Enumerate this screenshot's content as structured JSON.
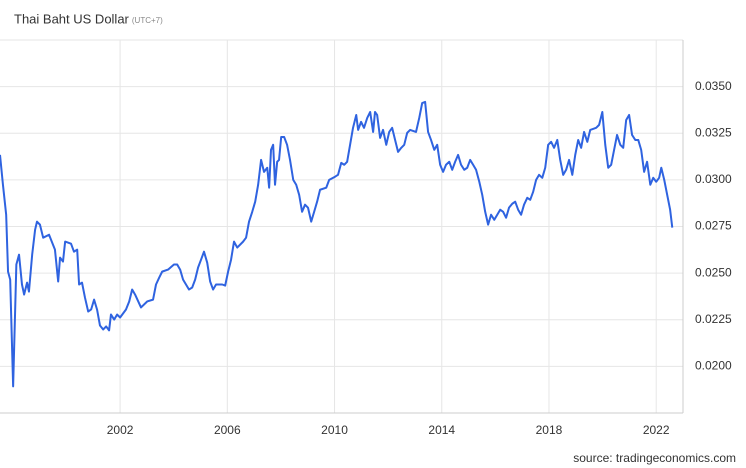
{
  "chart_data": {
    "type": "line",
    "title": "Thai Baht US Dollar",
    "subtitle": "(UTC+7)",
    "source": "source: tradingeconomics.com",
    "color": "#2f63e0",
    "grid": true,
    "xlim": [
      1997.52,
      2023.0
    ],
    "xticks": [
      2002,
      2006,
      2010,
      2014,
      2018,
      2022
    ],
    "ylim": [
      0.0175,
      0.0375
    ],
    "yticks": [
      {
        "value": 0.02,
        "label": "0.0200"
      },
      {
        "value": 0.0225,
        "label": "0.0225"
      },
      {
        "value": 0.025,
        "label": "0.0250"
      },
      {
        "value": 0.0275,
        "label": "0.0275"
      },
      {
        "value": 0.03,
        "label": "0.0300"
      },
      {
        "value": 0.0325,
        "label": "0.0325"
      },
      {
        "value": 0.035,
        "label": "0.0350"
      }
    ],
    "x": [
      1997.52,
      1997.63,
      1997.75,
      1997.82,
      1997.9,
      1998.01,
      1998.13,
      1998.23,
      1998.34,
      1998.42,
      1998.53,
      1998.6,
      1998.72,
      1998.83,
      1998.9,
      1999.01,
      1999.13,
      1999.35,
      1999.57,
      1999.69,
      1999.76,
      1999.87,
      1999.95,
      2000.17,
      2000.28,
      2000.4,
      2000.47,
      2000.58,
      2000.69,
      2000.81,
      2000.92,
      2001.03,
      2001.14,
      2001.25,
      2001.37,
      2001.48,
      2001.59,
      2001.66,
      2001.78,
      2001.89,
      2002.0,
      2002.22,
      2002.34,
      2002.45,
      2002.56,
      2002.78,
      2003.01,
      2003.23,
      2003.34,
      2003.46,
      2003.57,
      2003.79,
      2004.01,
      2004.13,
      2004.24,
      2004.35,
      2004.57,
      2004.69,
      2004.8,
      2004.91,
      2005.02,
      2005.13,
      2005.25,
      2005.36,
      2005.47,
      2005.58,
      2005.81,
      2005.92,
      2006.03,
      2006.14,
      2006.25,
      2006.37,
      2006.59,
      2006.7,
      2006.81,
      2006.93,
      2007.04,
      2007.15,
      2007.26,
      2007.37,
      2007.49,
      2007.56,
      2007.63,
      2007.71,
      2007.78,
      2007.86,
      2007.93,
      2008.01,
      2008.12,
      2008.23,
      2008.34,
      2008.46,
      2008.57,
      2008.68,
      2008.79,
      2008.9,
      2009.01,
      2009.13,
      2009.24,
      2009.35,
      2009.46,
      2009.69,
      2009.8,
      2010.02,
      2010.13,
      2010.25,
      2010.36,
      2010.47,
      2010.58,
      2010.69,
      2010.81,
      2010.88,
      2010.99,
      2011.1,
      2011.22,
      2011.33,
      2011.44,
      2011.51,
      2011.59,
      2011.7,
      2011.81,
      2011.93,
      2012.04,
      2012.15,
      2012.26,
      2012.37,
      2012.49,
      2012.6,
      2012.71,
      2012.82,
      2013.04,
      2013.16,
      2013.27,
      2013.38,
      2013.49,
      2013.6,
      2013.72,
      2013.83,
      2013.94,
      2014.05,
      2014.16,
      2014.28,
      2014.39,
      2014.5,
      2014.61,
      2014.72,
      2014.84,
      2014.95,
      2015.06,
      2015.17,
      2015.28,
      2015.4,
      2015.51,
      2015.62,
      2015.73,
      2015.84,
      2015.96,
      2016.07,
      2016.18,
      2016.29,
      2016.4,
      2016.51,
      2016.63,
      2016.74,
      2016.85,
      2016.96,
      2017.07,
      2017.19,
      2017.3,
      2017.41,
      2017.52,
      2017.63,
      2017.75,
      2017.86,
      2017.97,
      2018.08,
      2018.19,
      2018.31,
      2018.42,
      2018.53,
      2018.64,
      2018.75,
      2018.87,
      2018.98,
      2019.09,
      2019.2,
      2019.31,
      2019.43,
      2019.54,
      2019.76,
      2019.87,
      2019.99,
      2020.1,
      2020.21,
      2020.32,
      2020.43,
      2020.54,
      2020.66,
      2020.77,
      2020.88,
      2020.99,
      2021.1,
      2021.22,
      2021.33,
      2021.44,
      2021.55,
      2021.66,
      2021.78,
      2021.89,
      2022.0,
      2022.11,
      2022.19,
      2022.3,
      2022.41,
      2022.52,
      2022.6
    ],
    "values": [
      0.03134,
      0.02974,
      0.02813,
      0.02508,
      0.02465,
      0.01893,
      0.02546,
      0.02599,
      0.02439,
      0.02385,
      0.02449,
      0.02401,
      0.02599,
      0.02733,
      0.02776,
      0.0276,
      0.0269,
      0.02706,
      0.02626,
      0.02455,
      0.02583,
      0.02562,
      0.02669,
      0.02658,
      0.02615,
      0.02626,
      0.02439,
      0.02449,
      0.02369,
      0.02294,
      0.02305,
      0.02358,
      0.02305,
      0.02219,
      0.02198,
      0.02214,
      0.02193,
      0.02278,
      0.02251,
      0.02278,
      0.02262,
      0.02305,
      0.02348,
      0.02412,
      0.02385,
      0.02316,
      0.02348,
      0.02358,
      0.02439,
      0.02476,
      0.02508,
      0.02519,
      0.02546,
      0.02546,
      0.02519,
      0.02465,
      0.02412,
      0.02423,
      0.02465,
      0.0253,
      0.02572,
      0.02615,
      0.02556,
      0.02455,
      0.02412,
      0.02439,
      0.02439,
      0.02433,
      0.02508,
      0.02572,
      0.02669,
      0.02637,
      0.02669,
      0.0269,
      0.02776,
      0.02829,
      0.02883,
      0.02974,
      0.03107,
      0.03043,
      0.03065,
      0.02958,
      0.03161,
      0.03188,
      0.02974,
      0.03097,
      0.03107,
      0.0323,
      0.0323,
      0.03188,
      0.03107,
      0.03,
      0.02974,
      0.0292,
      0.02829,
      0.02867,
      0.02851,
      0.02776,
      0.02829,
      0.02883,
      0.02947,
      0.02958,
      0.03,
      0.03017,
      0.03027,
      0.03091,
      0.03081,
      0.03097,
      0.03188,
      0.03279,
      0.03348,
      0.03268,
      0.03311,
      0.03279,
      0.03332,
      0.03364,
      0.03257,
      0.03364,
      0.03348,
      0.03225,
      0.03268,
      0.03188,
      0.03257,
      0.03279,
      0.03214,
      0.0315,
      0.03172,
      0.03188,
      0.03252,
      0.03268,
      0.03257,
      0.03332,
      0.03412,
      0.03418,
      0.03257,
      0.03214,
      0.03161,
      0.03188,
      0.03081,
      0.03043,
      0.03081,
      0.03097,
      0.03054,
      0.03097,
      0.03134,
      0.03081,
      0.03054,
      0.03065,
      0.03107,
      0.03081,
      0.03054,
      0.0299,
      0.0292,
      0.02829,
      0.0276,
      0.02813,
      0.02786,
      0.02813,
      0.0284,
      0.02829,
      0.02797,
      0.02851,
      0.02872,
      0.02883,
      0.0284,
      0.02813,
      0.02867,
      0.02904,
      0.02893,
      0.02936,
      0.03,
      0.03027,
      0.03011,
      0.03065,
      0.03188,
      0.03204,
      0.03172,
      0.03214,
      0.03107,
      0.03027,
      0.03054,
      0.03107,
      0.03027,
      0.03134,
      0.03214,
      0.03172,
      0.03257,
      0.03204,
      0.03268,
      0.03279,
      0.03295,
      0.03364,
      0.03188,
      0.03065,
      0.03081,
      0.03161,
      0.03241,
      0.03188,
      0.03172,
      0.03321,
      0.03348,
      0.03241,
      0.03214,
      0.03214,
      0.03161,
      0.03043,
      0.03097,
      0.02974,
      0.03011,
      0.0299,
      0.03011,
      0.03065,
      0.03,
      0.0292,
      0.0284,
      0.02744
    ]
  }
}
